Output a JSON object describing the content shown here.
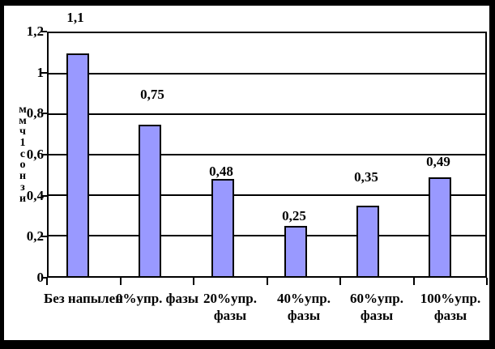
{
  "chart_data": {
    "type": "bar",
    "title": "",
    "categories": [
      "Без напылен",
      "0%упр. фазы",
      "20%упр. фазы",
      "40%упр. фазы",
      "60%упр. фазы",
      "100%упр. фазы"
    ],
    "values": [
      1.1,
      0.75,
      0.48,
      0.25,
      0.35,
      0.49
    ],
    "point_labels": [
      "1,1",
      "0,75",
      "0,48",
      "0,25",
      "0,35",
      "0,49"
    ],
    "xlabel": "",
    "ylabel": "Износ, мм",
    "ylabel_stacked_chars": [
      "м",
      "м",
      "ч",
      "1",
      "с",
      "о",
      "н",
      "з",
      "и"
    ],
    "ylim": [
      0,
      1.2
    ],
    "y_ticks": [
      "1,2",
      "1",
      "0,8",
      "0,6",
      "0,4",
      "0,2",
      "0"
    ],
    "y_tick_values": [
      1.2,
      1.0,
      0.8,
      0.6,
      0.4,
      0.2,
      0
    ],
    "grid": "horizontal gridlines every 0.2, black",
    "legend": "none",
    "decimal_separator": ",",
    "bar_color": "#9999FF",
    "bar_border_color": "#000000",
    "axis_color": "#000000",
    "text_color": "#000000",
    "plot_background": "#FFFFFF",
    "frame_color": "#000000"
  },
  "category_lines": [
    [
      "Без напылен",
      ""
    ],
    [
      "0%упр. фазы",
      ""
    ],
    [
      "20%упр.",
      "фазы"
    ],
    [
      "40%упр.",
      "фазы"
    ],
    [
      "60%упр.",
      "фазы"
    ],
    [
      "100%упр.",
      "фазы"
    ]
  ]
}
